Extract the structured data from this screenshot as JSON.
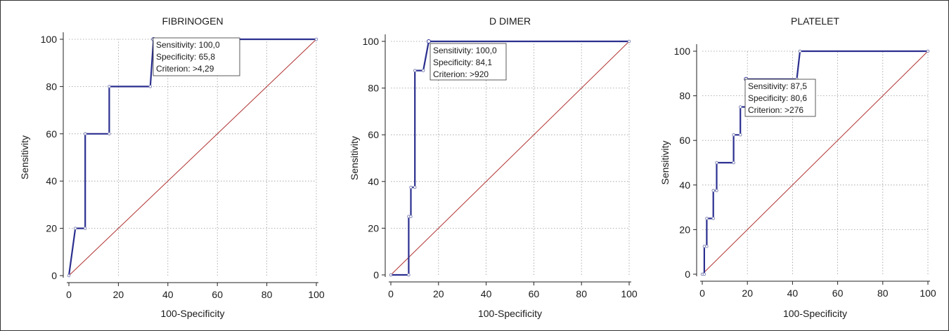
{
  "colors": {
    "roc": "#2b2f8f",
    "diagonal": "#b03030",
    "marker": "#7a7fb0"
  },
  "chart_data": [
    {
      "type": "line",
      "title": "FIBRINOGEN",
      "xlabel": "100-Specificity",
      "ylabel": "Sensitivity",
      "xlim": [
        0,
        100
      ],
      "ylim": [
        0,
        100
      ],
      "xticks": [
        0,
        20,
        40,
        60,
        80,
        100
      ],
      "yticks": [
        0,
        20,
        40,
        60,
        80,
        100
      ],
      "grid": true,
      "diagonal": true,
      "roc": {
        "x": [
          0,
          2.6,
          6.6,
          6.6,
          16.3,
          16.3,
          32.9,
          34.2,
          100
        ],
        "y": [
          0,
          20,
          20,
          60,
          60,
          80,
          80,
          100,
          100
        ]
      },
      "annotation": {
        "lines": [
          "Sensitivity: 100,0",
          "Specificity: 65,8",
          "Criterion: >4,29"
        ],
        "point": [
          34.2,
          100
        ]
      }
    },
    {
      "type": "line",
      "title": "D DIMER",
      "xlabel": "100-Specificity",
      "ylabel": "Sensitivity",
      "xlim": [
        0,
        100
      ],
      "ylim": [
        0,
        100
      ],
      "xticks": [
        0,
        20,
        40,
        60,
        80,
        100
      ],
      "yticks": [
        0,
        20,
        40,
        60,
        80,
        100
      ],
      "grid": true,
      "diagonal": true,
      "roc": {
        "x": [
          0,
          7.5,
          7.5,
          8.4,
          8.4,
          10.1,
          10.1,
          13.6,
          15.9,
          100
        ],
        "y": [
          0,
          0,
          25,
          25,
          37.5,
          37.5,
          87.5,
          87.5,
          100,
          100
        ]
      },
      "annotation": {
        "lines": [
          "Sensitivity: 100,0",
          "Specificity: 84,1",
          "Criterion: >920"
        ],
        "point": [
          15.9,
          100
        ]
      }
    },
    {
      "type": "line",
      "title": "PLATELET",
      "xlabel": "100-Specificity",
      "ylabel": "Sensitivity",
      "xlim": [
        0,
        100
      ],
      "ylim": [
        0,
        100
      ],
      "xticks": [
        0,
        20,
        40,
        60,
        80,
        100
      ],
      "yticks": [
        0,
        20,
        40,
        60,
        80,
        100
      ],
      "grid": true,
      "diagonal": true,
      "roc": {
        "x": [
          0,
          0.9,
          0.9,
          2,
          2,
          4.9,
          4.9,
          6.4,
          6.4,
          13.9,
          13.9,
          16.9,
          16.9,
          19.4,
          19.4,
          41.9,
          43.3,
          100
        ],
        "y": [
          0,
          0,
          12.5,
          12.5,
          25,
          25,
          37.5,
          37.5,
          50,
          50,
          62.5,
          62.5,
          75,
          75,
          87.5,
          87.5,
          100,
          100
        ]
      },
      "annotation": {
        "lines": [
          "Sensitivity: 87,5",
          "Specificity: 80,6",
          "Criterion: >276"
        ],
        "point": [
          19.4,
          87.5
        ]
      }
    }
  ]
}
